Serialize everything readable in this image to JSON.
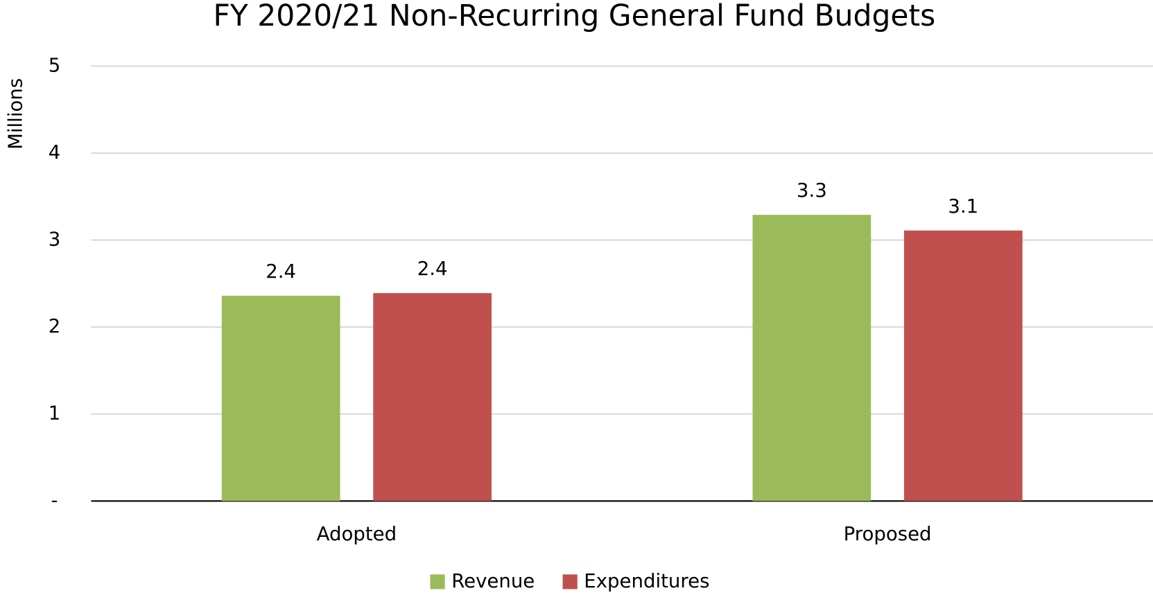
{
  "chart_data": {
    "type": "bar",
    "title": "FY 2020/21 Non-Recurring General Fund Budgets",
    "y_label": "Millions",
    "categories": [
      "Adopted",
      "Proposed"
    ],
    "series": [
      {
        "name": "Revenue",
        "color": "#9bbb59",
        "values": [
          2.36,
          3.29
        ],
        "value_labels": [
          "2.4",
          "3.3"
        ]
      },
      {
        "name": "Expenditures",
        "color": "#c0504d",
        "values": [
          2.39,
          3.11
        ],
        "value_labels": [
          "2.4",
          "3.1"
        ]
      }
    ],
    "ylim": [
      0,
      5
    ],
    "yticks": [
      {
        "value": 0,
        "label": "-"
      },
      1,
      2,
      3,
      4,
      5
    ],
    "grid": true,
    "legend": "bottom"
  }
}
